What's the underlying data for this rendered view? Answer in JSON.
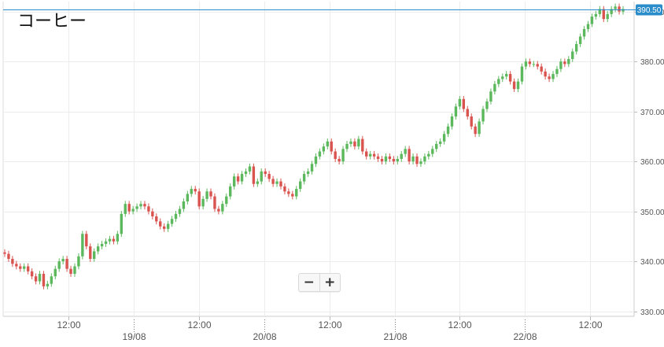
{
  "title": "コーヒー",
  "zoom": {
    "minus": "−",
    "plus": "+"
  },
  "colors": {
    "up": "#5cb85c",
    "down": "#d9534f",
    "current": "#2a8dc9",
    "grid": "#ececec"
  },
  "chart_data": {
    "type": "candlestick",
    "title": "コーヒー",
    "ylim": [
      329,
      392
    ],
    "y_ticks": [
      330,
      340,
      350,
      360,
      370,
      380,
      390
    ],
    "y_tick_labels": [
      "330.00",
      "340.00",
      "350.00",
      "360.00",
      "370.00",
      "380.00",
      "390.00"
    ],
    "x_ticks": [
      {
        "label": "12:00",
        "t": 0.5,
        "major": false
      },
      {
        "label": "19/08",
        "t": 1.0,
        "major": true
      },
      {
        "label": "12:00",
        "t": 1.5,
        "major": false
      },
      {
        "label": "20/08",
        "t": 2.0,
        "major": true
      },
      {
        "label": "12:00",
        "t": 2.5,
        "major": false
      },
      {
        "label": "21/08",
        "t": 3.0,
        "major": true
      },
      {
        "label": "12:00",
        "t": 3.5,
        "major": false
      },
      {
        "label": "22/08",
        "t": 4.0,
        "major": true
      },
      {
        "label": "12:00",
        "t": 4.5,
        "major": false
      }
    ],
    "x_range": [
      0,
      4.8
    ],
    "current_price": 390.5,
    "current_price_label": "390.50",
    "grid": true,
    "closes": [
      341.5,
      340.5,
      339.5,
      339.0,
      338.5,
      339.0,
      338.0,
      337.0,
      336.0,
      337.5,
      335.0,
      335.5,
      337.0,
      338.5,
      340.0,
      340.5,
      338.5,
      337.5,
      339.0,
      341.0,
      345.5,
      343.0,
      340.5,
      342.0,
      343.0,
      343.5,
      344.0,
      344.5,
      344.0,
      345.5,
      349.5,
      351.5,
      350.0,
      350.5,
      351.0,
      351.5,
      351.0,
      350.0,
      349.0,
      348.0,
      347.0,
      346.5,
      347.5,
      348.5,
      349.5,
      350.5,
      352.0,
      353.5,
      354.5,
      354.0,
      351.0,
      352.5,
      354.0,
      353.0,
      350.5,
      350.0,
      351.5,
      353.0,
      355.0,
      357.0,
      356.0,
      357.5,
      358.0,
      359.0,
      355.5,
      356.0,
      358.0,
      357.5,
      356.5,
      355.5,
      356.0,
      355.0,
      354.0,
      353.5,
      353.0,
      354.5,
      356.0,
      357.5,
      358.0,
      359.5,
      361.0,
      362.0,
      363.0,
      364.0,
      362.0,
      360.5,
      360.0,
      362.5,
      363.5,
      364.0,
      363.0,
      364.5,
      362.0,
      361.0,
      361.5,
      361.0,
      360.5,
      360.0,
      361.0,
      360.5,
      360.0,
      360.5,
      361.5,
      362.5,
      360.0,
      361.0,
      359.5,
      360.0,
      361.0,
      361.5,
      362.5,
      363.5,
      364.0,
      365.5,
      367.0,
      369.0,
      371.0,
      372.5,
      370.5,
      369.0,
      367.0,
      365.5,
      368.0,
      370.5,
      372.0,
      374.0,
      375.5,
      376.5,
      377.0,
      377.5,
      376.0,
      374.5,
      376.0,
      379.0,
      380.0,
      379.5,
      379.5,
      379.0,
      378.0,
      377.0,
      376.5,
      377.5,
      378.5,
      380.0,
      379.5,
      380.5,
      382.0,
      383.5,
      385.0,
      386.5,
      387.5,
      389.0,
      389.5,
      390.5,
      388.5,
      389.5,
      390.5,
      391.0,
      390.0,
      390.5
    ]
  }
}
